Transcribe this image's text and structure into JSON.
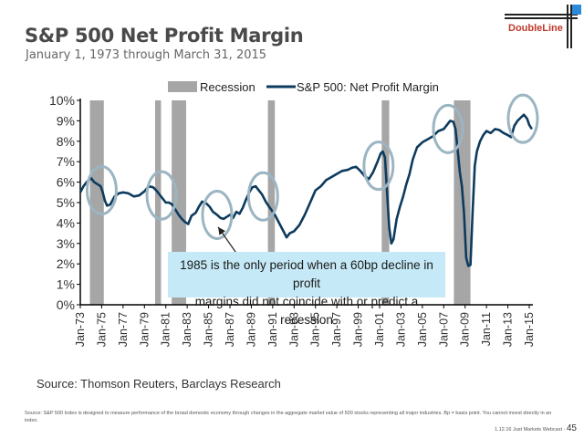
{
  "header": {
    "title": "S&P 500 Net Profit Margin",
    "subtitle": "January 1, 1973 through March 31, 2015",
    "logo_text": "DoubleLine",
    "logo_colors": {
      "text": "#c0392b",
      "square": "#2e8ad8"
    }
  },
  "callout": {
    "line1": "1985 is the only period when  a 60bp decline in profit",
    "line2": "margins did not coincide with or predict a recession"
  },
  "source": "Source: Thomson Reuters, Barclays Research",
  "disclaimer": "Source:  S&P  500 Index is designed to measure performance of the broad domestic economy through changes in the aggregate market value of  500 stocks representing all major industries. Bp = basis point. You cannot invest directly in an index.",
  "footer": {
    "text": "1.12.16 Just Markets Webcast - ",
    "page": "45"
  },
  "chart_data": {
    "type": "line",
    "title": "S&P 500 Net Profit Margin",
    "xlabel": "",
    "ylabel": "",
    "ylim": [
      0,
      10
    ],
    "xlim": [
      1973,
      2015.3
    ],
    "yticks": [
      "0%",
      "1%",
      "2%",
      "3%",
      "4%",
      "5%",
      "6%",
      "7%",
      "8%",
      "9%",
      "10%"
    ],
    "xticks": [
      "Jan-73",
      "Jan-75",
      "Jan-77",
      "Jan-79",
      "Jan-81",
      "Jan-83",
      "Jan-85",
      "Jan-87",
      "Jan-89",
      "Jan-91",
      "Jan-93",
      "Jan-95",
      "Jan-97",
      "Jan-99",
      "Jan-01",
      "Jan-03",
      "Jan-05",
      "Jan-07",
      "Jan-09",
      "Jan-11",
      "Jan-13",
      "Jan-15"
    ],
    "legend": {
      "placement": "top",
      "entries": [
        "Recession",
        "S&P 500: Net Profit Margin"
      ]
    },
    "colors": {
      "line": "#0d3b5e",
      "recession": "#a6a6a6",
      "circle": "#9bb5c2",
      "callout_bg": "#c5e9f6"
    },
    "recessions": [
      {
        "start": 1973.9,
        "end": 1975.2
      },
      {
        "start": 1980.0,
        "end": 1980.55
      },
      {
        "start": 1981.55,
        "end": 1982.9
      },
      {
        "start": 1990.55,
        "end": 1991.2
      },
      {
        "start": 2001.2,
        "end": 2001.9
      },
      {
        "start": 2007.95,
        "end": 2009.5
      }
    ],
    "series": [
      {
        "name": "S&P 500: Net Profit Margin",
        "x": [
          1973.0,
          1973.3,
          1973.6,
          1974.0,
          1974.3,
          1974.6,
          1974.9,
          1975.1,
          1975.3,
          1975.5,
          1975.8,
          1976.2,
          1976.6,
          1977.0,
          1977.5,
          1978.0,
          1978.5,
          1979.0,
          1979.4,
          1979.8,
          1980.1,
          1980.4,
          1980.7,
          1981.0,
          1981.3,
          1981.6,
          1981.9,
          1982.2,
          1982.5,
          1982.8,
          1983.1,
          1983.4,
          1983.8,
          1984.1,
          1984.4,
          1984.8,
          1985.1,
          1985.4,
          1985.8,
          1986.1,
          1986.4,
          1986.7,
          1987.0,
          1987.3,
          1987.6,
          1987.9,
          1988.2,
          1988.5,
          1988.8,
          1989.1,
          1989.4,
          1989.7,
          1990.0,
          1990.4,
          1990.8,
          1991.2,
          1991.6,
          1992.0,
          1992.3,
          1992.6,
          1993.0,
          1993.5,
          1994.0,
          1994.5,
          1995.0,
          1995.5,
          1996.0,
          1996.5,
          1997.0,
          1997.5,
          1998.0,
          1998.4,
          1998.8,
          1999.2,
          1999.6,
          2000.0,
          2000.4,
          2000.8,
          2001.1,
          2001.3,
          2001.5,
          2001.7,
          2001.9,
          2002.1,
          2002.3,
          2002.6,
          2002.9,
          2003.2,
          2003.5,
          2003.8,
          2004.1,
          2004.5,
          2005.0,
          2005.5,
          2006.0,
          2006.5,
          2007.0,
          2007.3,
          2007.6,
          2007.9,
          2008.1,
          2008.3,
          2008.5,
          2008.7,
          2008.9,
          2009.1,
          2009.3,
          2009.5,
          2009.7,
          2009.9,
          2010.1,
          2010.4,
          2010.7,
          2011.0,
          2011.4,
          2011.8,
          2012.2,
          2012.6,
          2013.0,
          2013.3,
          2013.6,
          2013.9,
          2014.2,
          2014.5,
          2014.8,
          2015.0,
          2015.25
        ],
        "values": [
          5.5,
          5.8,
          6.0,
          6.2,
          6.0,
          5.9,
          5.8,
          5.5,
          5.1,
          4.85,
          4.9,
          5.3,
          5.45,
          5.5,
          5.45,
          5.3,
          5.35,
          5.55,
          5.8,
          5.75,
          5.6,
          5.4,
          5.2,
          5.0,
          5.0,
          4.9,
          4.65,
          4.4,
          4.2,
          4.05,
          3.95,
          4.35,
          4.5,
          4.8,
          5.05,
          4.95,
          4.8,
          4.55,
          4.4,
          4.25,
          4.2,
          4.3,
          4.4,
          4.25,
          4.55,
          4.45,
          4.75,
          5.15,
          5.5,
          5.75,
          5.8,
          5.6,
          5.4,
          5.0,
          4.7,
          4.4,
          4.0,
          3.6,
          3.3,
          3.5,
          3.6,
          3.9,
          4.4,
          5.0,
          5.6,
          5.8,
          6.1,
          6.25,
          6.4,
          6.55,
          6.6,
          6.7,
          6.75,
          6.55,
          6.3,
          6.15,
          6.5,
          7.0,
          7.4,
          7.5,
          7.2,
          5.5,
          3.8,
          3.0,
          3.2,
          4.2,
          4.8,
          5.3,
          5.9,
          6.4,
          7.1,
          7.7,
          7.95,
          8.1,
          8.25,
          8.5,
          8.6,
          8.8,
          9.0,
          8.95,
          8.6,
          7.6,
          6.5,
          5.8,
          4.5,
          2.3,
          1.9,
          1.95,
          4.5,
          6.8,
          7.5,
          8.0,
          8.3,
          8.5,
          8.4,
          8.6,
          8.55,
          8.4,
          8.3,
          8.2,
          8.75,
          9.0,
          9.15,
          9.3,
          9.1,
          8.8,
          8.6
        ]
      }
    ],
    "annotations": [
      {
        "type": "circle",
        "center_x": 1975.0,
        "center_y": 5.6
      },
      {
        "type": "circle",
        "center_x": 1980.6,
        "center_y": 5.35
      },
      {
        "type": "circle",
        "center_x": 1985.8,
        "center_y": 4.4
      },
      {
        "type": "circle",
        "center_x": 1990.1,
        "center_y": 5.3
      },
      {
        "type": "circle",
        "center_x": 2000.9,
        "center_y": 6.8
      },
      {
        "type": "circle",
        "center_x": 2007.4,
        "center_y": 8.6
      },
      {
        "type": "circle",
        "center_x": 2014.4,
        "center_y": 9.1
      },
      {
        "type": "arrow",
        "from_x": 1987.9,
        "from_y": 2.3,
        "to_x": 1985.9,
        "to_y": 3.8
      }
    ]
  }
}
